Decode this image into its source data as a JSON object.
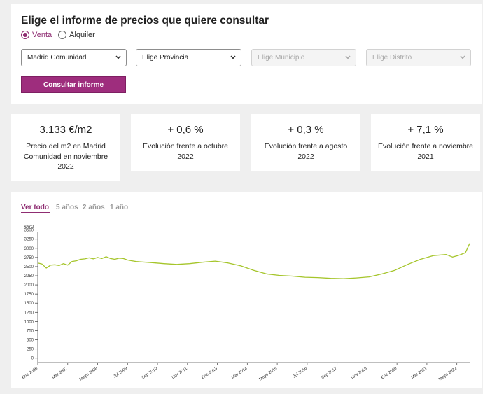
{
  "form": {
    "title": "Elige el informe de precios que quiere consultar",
    "operation_options": [
      {
        "label": "Venta",
        "selected": true
      },
      {
        "label": "Alquiler",
        "selected": false
      }
    ],
    "selects": [
      {
        "value": "Madrid Comunidad",
        "disabled": false
      },
      {
        "value": "Elige Provincia",
        "disabled": false
      },
      {
        "value": "Elige Municipio",
        "disabled": true
      },
      {
        "value": "Elige Distrito",
        "disabled": true
      }
    ],
    "submit_label": "Consultar informe"
  },
  "cards": [
    {
      "value": "3.133 €/m2",
      "description": "Precio del m2 en Madrid Comunidad en noviembre 2022"
    },
    {
      "value": "+ 0,6 %",
      "description": "Evolución frente a octubre 2022"
    },
    {
      "value": "+ 0,3 %",
      "description": "Evolución frente a agosto 2022"
    },
    {
      "value": "+ 7,1 %",
      "description": "Evolución frente a noviembre 2021"
    }
  ],
  "chart_tabs": [
    {
      "label": "Ver todo",
      "active": true
    },
    {
      "label": "5 años",
      "active": false
    },
    {
      "label": "2 años",
      "active": false
    },
    {
      "label": "1 año",
      "active": false
    }
  ],
  "colors": {
    "brand": "#9e2d7d",
    "line": "#a5c52a"
  },
  "chart_data": {
    "type": "line",
    "ylabel": "€/m2",
    "ylim": [
      -120,
      3550
    ],
    "y_ticks": [
      0,
      250,
      500,
      750,
      1000,
      1250,
      1500,
      1750,
      2000,
      2250,
      2500,
      2750,
      3000,
      3250,
      3500
    ],
    "x_tick_labels": [
      "Ene 2006",
      "Mar 2007",
      "Mayo 2008",
      "Jul 2009",
      "Sep 2010",
      "Nov 2011",
      "Ene 2013",
      "Mar 2014",
      "Mayo 2015",
      "Jul 2016",
      "Sep 2017",
      "Nov 2018",
      "Ene 2020",
      "Mar 2021",
      "Mayo 2022"
    ],
    "series": [
      {
        "values": [
          [
            "2006-01",
            2600
          ],
          [
            "2006-03",
            2570
          ],
          [
            "2006-05",
            2460
          ],
          [
            "2006-07",
            2540
          ],
          [
            "2006-09",
            2550
          ],
          [
            "2006-11",
            2530
          ],
          [
            "2007-01",
            2580
          ],
          [
            "2007-03",
            2540
          ],
          [
            "2007-05",
            2640
          ],
          [
            "2007-07",
            2660
          ],
          [
            "2007-09",
            2700
          ],
          [
            "2007-11",
            2710
          ],
          [
            "2008-01",
            2740
          ],
          [
            "2008-03",
            2710
          ],
          [
            "2008-05",
            2750
          ],
          [
            "2008-07",
            2720
          ],
          [
            "2008-09",
            2770
          ],
          [
            "2008-11",
            2720
          ],
          [
            "2009-01",
            2700
          ],
          [
            "2009-03",
            2730
          ],
          [
            "2009-05",
            2720
          ],
          [
            "2009-07",
            2680
          ],
          [
            "2009-09",
            2660
          ],
          [
            "2009-11",
            2640
          ],
          [
            "2010-01",
            2630
          ],
          [
            "2010-06",
            2610
          ],
          [
            "2010-12",
            2580
          ],
          [
            "2011-06",
            2560
          ],
          [
            "2011-12",
            2580
          ],
          [
            "2012-06",
            2620
          ],
          [
            "2012-12",
            2650
          ],
          [
            "2013-06",
            2600
          ],
          [
            "2013-12",
            2520
          ],
          [
            "2014-06",
            2400
          ],
          [
            "2014-12",
            2300
          ],
          [
            "2015-06",
            2260
          ],
          [
            "2015-12",
            2240
          ],
          [
            "2016-06",
            2210
          ],
          [
            "2016-12",
            2200
          ],
          [
            "2017-06",
            2180
          ],
          [
            "2017-12",
            2170
          ],
          [
            "2018-06",
            2190
          ],
          [
            "2018-12",
            2220
          ],
          [
            "2019-06",
            2300
          ],
          [
            "2019-12",
            2400
          ],
          [
            "2020-06",
            2560
          ],
          [
            "2020-12",
            2700
          ],
          [
            "2021-06",
            2800
          ],
          [
            "2021-12",
            2830
          ],
          [
            "2022-03",
            2760
          ],
          [
            "2022-06",
            2810
          ],
          [
            "2022-09",
            2880
          ],
          [
            "2022-11",
            3133
          ]
        ]
      }
    ]
  }
}
